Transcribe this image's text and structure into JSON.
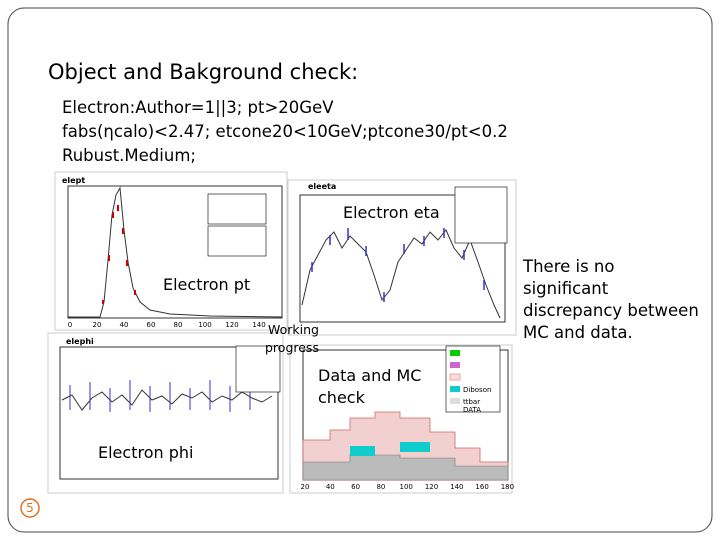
{
  "slide": {
    "title": "Object and Bakground check:",
    "selection": [
      "Electron:Author=1||3; pt>20GeV",
      "fabs(ηcalo)<2.47; etcone20<10GeV;ptcone30/pt<0.2",
      "Rubust.Medium;"
    ],
    "plots": [
      {
        "title": "elept",
        "label": "Electron pt",
        "xticks": [
          "0",
          "20",
          "40",
          "60",
          "80",
          "100",
          "120",
          "140"
        ]
      },
      {
        "title": "eleeta",
        "label": "Electron eta"
      },
      {
        "title": "elephi",
        "label": "Electron phi"
      },
      {
        "label": "Data and MC check",
        "xticks": [
          "20",
          "40",
          "60",
          "80",
          "100",
          "120",
          "140",
          "160",
          "180"
        ],
        "legend": [
          "Diboson",
          "ttbar",
          "DATA"
        ]
      }
    ],
    "note": [
      "Working",
      "progress"
    ],
    "conclusion": [
      "There is no",
      "significant",
      "discrepancy between",
      "MC and data."
    ],
    "page_number": "5"
  }
}
